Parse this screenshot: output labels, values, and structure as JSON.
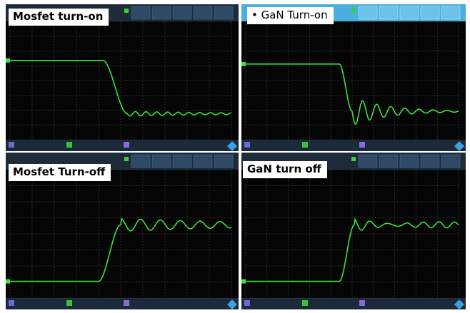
{
  "panels": [
    {
      "label": "Mosfet turn-on"
    },
    {
      "label": "• GaN Turn-on"
    },
    {
      "label": "Mosfet Turn-off"
    },
    {
      "label": "GaN turn off"
    }
  ]
}
